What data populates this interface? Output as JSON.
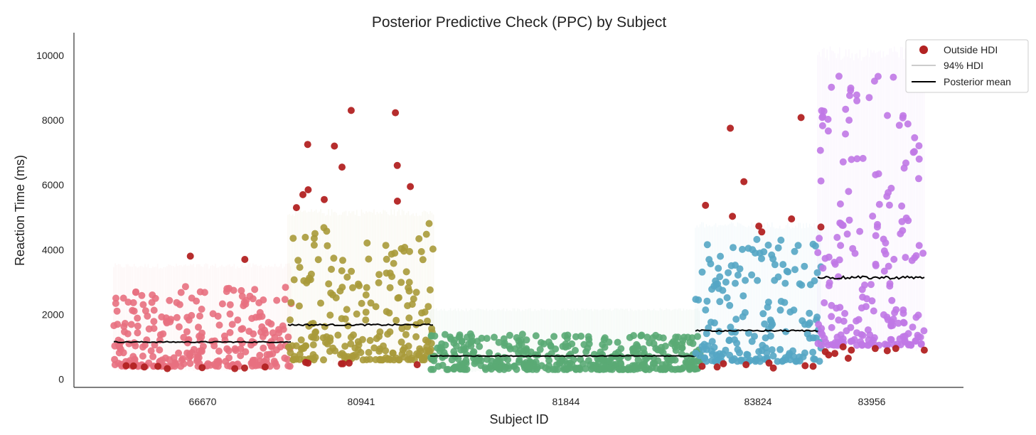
{
  "chart_data": {
    "type": "scatter",
    "title": "Posterior Predictive Check (PPC) by Subject",
    "xlabel": "Subject ID",
    "ylabel": "Reaction Time (ms)",
    "ylim": [
      -250,
      10700
    ],
    "yticks": [
      0,
      2000,
      4000,
      6000,
      8000,
      10000
    ],
    "grid": false,
    "legend_position": "top-right",
    "legend": [
      {
        "label": "Outside HDI",
        "kind": "point",
        "color": "#b22222"
      },
      {
        "label": "94% HDI",
        "kind": "line",
        "color": "#bbbbbb"
      },
      {
        "label": "Posterior mean",
        "kind": "line",
        "color": "#000000"
      }
    ],
    "outside_color": "#b22222",
    "mean_color": "#000000",
    "subjects": [
      {
        "id": "66670",
        "color": "#e8707f",
        "hdi": [
          300,
          3500
        ],
        "posterior_mean": 1150,
        "n_points": 280,
        "typical_range": [
          400,
          2900
        ],
        "outside_points": [
          3800,
          3700,
          380,
          360,
          330,
          400,
          420,
          350,
          380,
          330,
          410
        ]
      },
      {
        "id": "80941",
        "color": "#a89a3a",
        "hdi": [
          550,
          5150
        ],
        "posterior_mean": 1680,
        "n_points": 230,
        "typical_range": [
          600,
          4850
        ],
        "outside_points": [
          8230,
          8300,
          6550,
          7200,
          6600,
          7250,
          5700,
          5550,
          5300,
          5850,
          5950,
          5500,
          500,
          480,
          520,
          450,
          480,
          500
        ]
      },
      {
        "id": "81844",
        "color": "#5aaa74",
        "hdi": [
          250,
          2150
        ],
        "posterior_mean": 720,
        "n_points": 420,
        "typical_range": [
          300,
          1400
        ],
        "outside_points": []
      },
      {
        "id": "83824",
        "color": "#55a6c4",
        "hdi": [
          500,
          4750
        ],
        "posterior_mean": 1500,
        "n_points": 190,
        "typical_range": [
          550,
          4350
        ],
        "outside_points": [
          6100,
          7750,
          8080,
          5370,
          4730,
          5030,
          4950,
          4550,
          4700,
          420,
          400,
          350,
          380,
          450,
          480,
          400,
          500
        ]
      },
      {
        "id": "83956",
        "color": "#c078e6",
        "hdi": [
          1000,
          10050
        ],
        "posterior_mean": 3140,
        "n_points": 210,
        "typical_range": [
          1050,
          9500
        ],
        "outside_points": [
          950,
          900,
          850,
          1000,
          750,
          800,
          650,
          950,
          900,
          880
        ]
      }
    ]
  }
}
